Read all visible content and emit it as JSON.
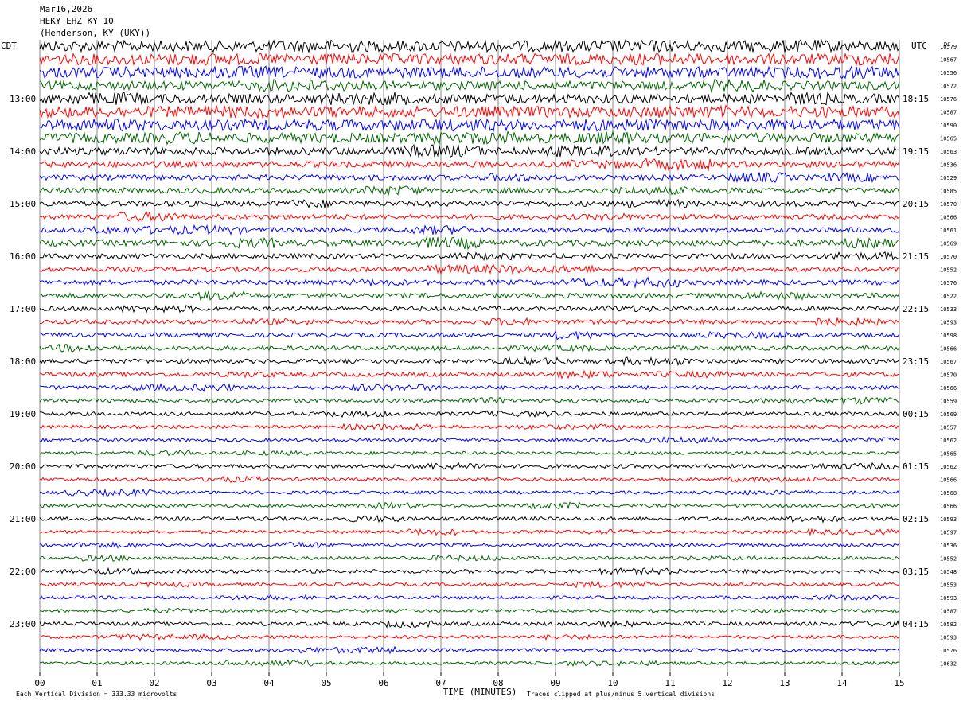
{
  "header": {
    "date": "Mar16,2026",
    "station": "HEKY EHZ KY 10",
    "location": "(Henderson, KY (UKY))"
  },
  "left_tz": "CDT",
  "right_tz": "UTC",
  "right_col_header": "DC",
  "footer": {
    "scale_note": "Each Vertical Division =  333.33 microvolts",
    "clip_note": "Traces clipped at plus/minus 5 vertical divisions"
  },
  "colors": [
    "#000000",
    "#ff0000",
    "#0000ff",
    "#006400"
  ],
  "chart_data": {
    "type": "helicorder",
    "xlabel": "TIME (MINUTES)",
    "xlim": [
      0,
      15
    ],
    "x_ticks": [
      "00",
      "01",
      "02",
      "03",
      "04",
      "05",
      "06",
      "07",
      "08",
      "09",
      "10",
      "11",
      "12",
      "13",
      "14",
      "15"
    ],
    "rows_per_hour": 4,
    "row_minutes": 15,
    "left_hour_labels": [
      "13:00",
      "14:00",
      "15:00",
      "16:00",
      "17:00",
      "18:00",
      "19:00",
      "20:00",
      "21:00",
      "22:00",
      "23:00"
    ],
    "right_hour_labels": [
      "18:15",
      "19:15",
      "20:15",
      "21:15",
      "22:15",
      "23:15",
      "00:15",
      "01:15",
      "02:15",
      "03:15",
      "04:15"
    ],
    "first_label_row": 4,
    "dc_offsets": [
      "10579",
      "10567",
      "10556",
      "10572",
      "10576",
      "10587",
      "10590",
      "10565",
      "10563",
      "10536",
      "10529",
      "10585",
      "10570",
      "10566",
      "10561",
      "10569",
      "10570",
      "10552",
      "10576",
      "10522",
      "10533",
      "10593",
      "10598",
      "10566",
      "10567",
      "10570",
      "10566",
      "10559",
      "10569",
      "10557",
      "10562",
      "10565",
      "10562",
      "10566",
      "10568",
      "10566",
      "10593",
      "10597",
      "10536",
      "10552",
      "10548",
      "10553",
      "10593",
      "10587",
      "10582",
      "10593",
      "10576",
      "10632"
    ],
    "row_amplitudes": [
      1.0,
      1.0,
      1.0,
      0.8,
      0.85,
      1.0,
      1.0,
      0.9,
      0.7,
      0.55,
      0.5,
      0.5,
      0.5,
      0.45,
      0.45,
      0.55,
      0.45,
      0.45,
      0.45,
      0.45,
      0.4,
      0.4,
      0.4,
      0.4,
      0.4,
      0.4,
      0.35,
      0.35,
      0.35,
      0.3,
      0.3,
      0.3,
      0.35,
      0.3,
      0.3,
      0.3,
      0.35,
      0.3,
      0.3,
      0.3,
      0.35,
      0.3,
      0.3,
      0.3,
      0.35,
      0.3,
      0.3,
      0.3
    ]
  }
}
